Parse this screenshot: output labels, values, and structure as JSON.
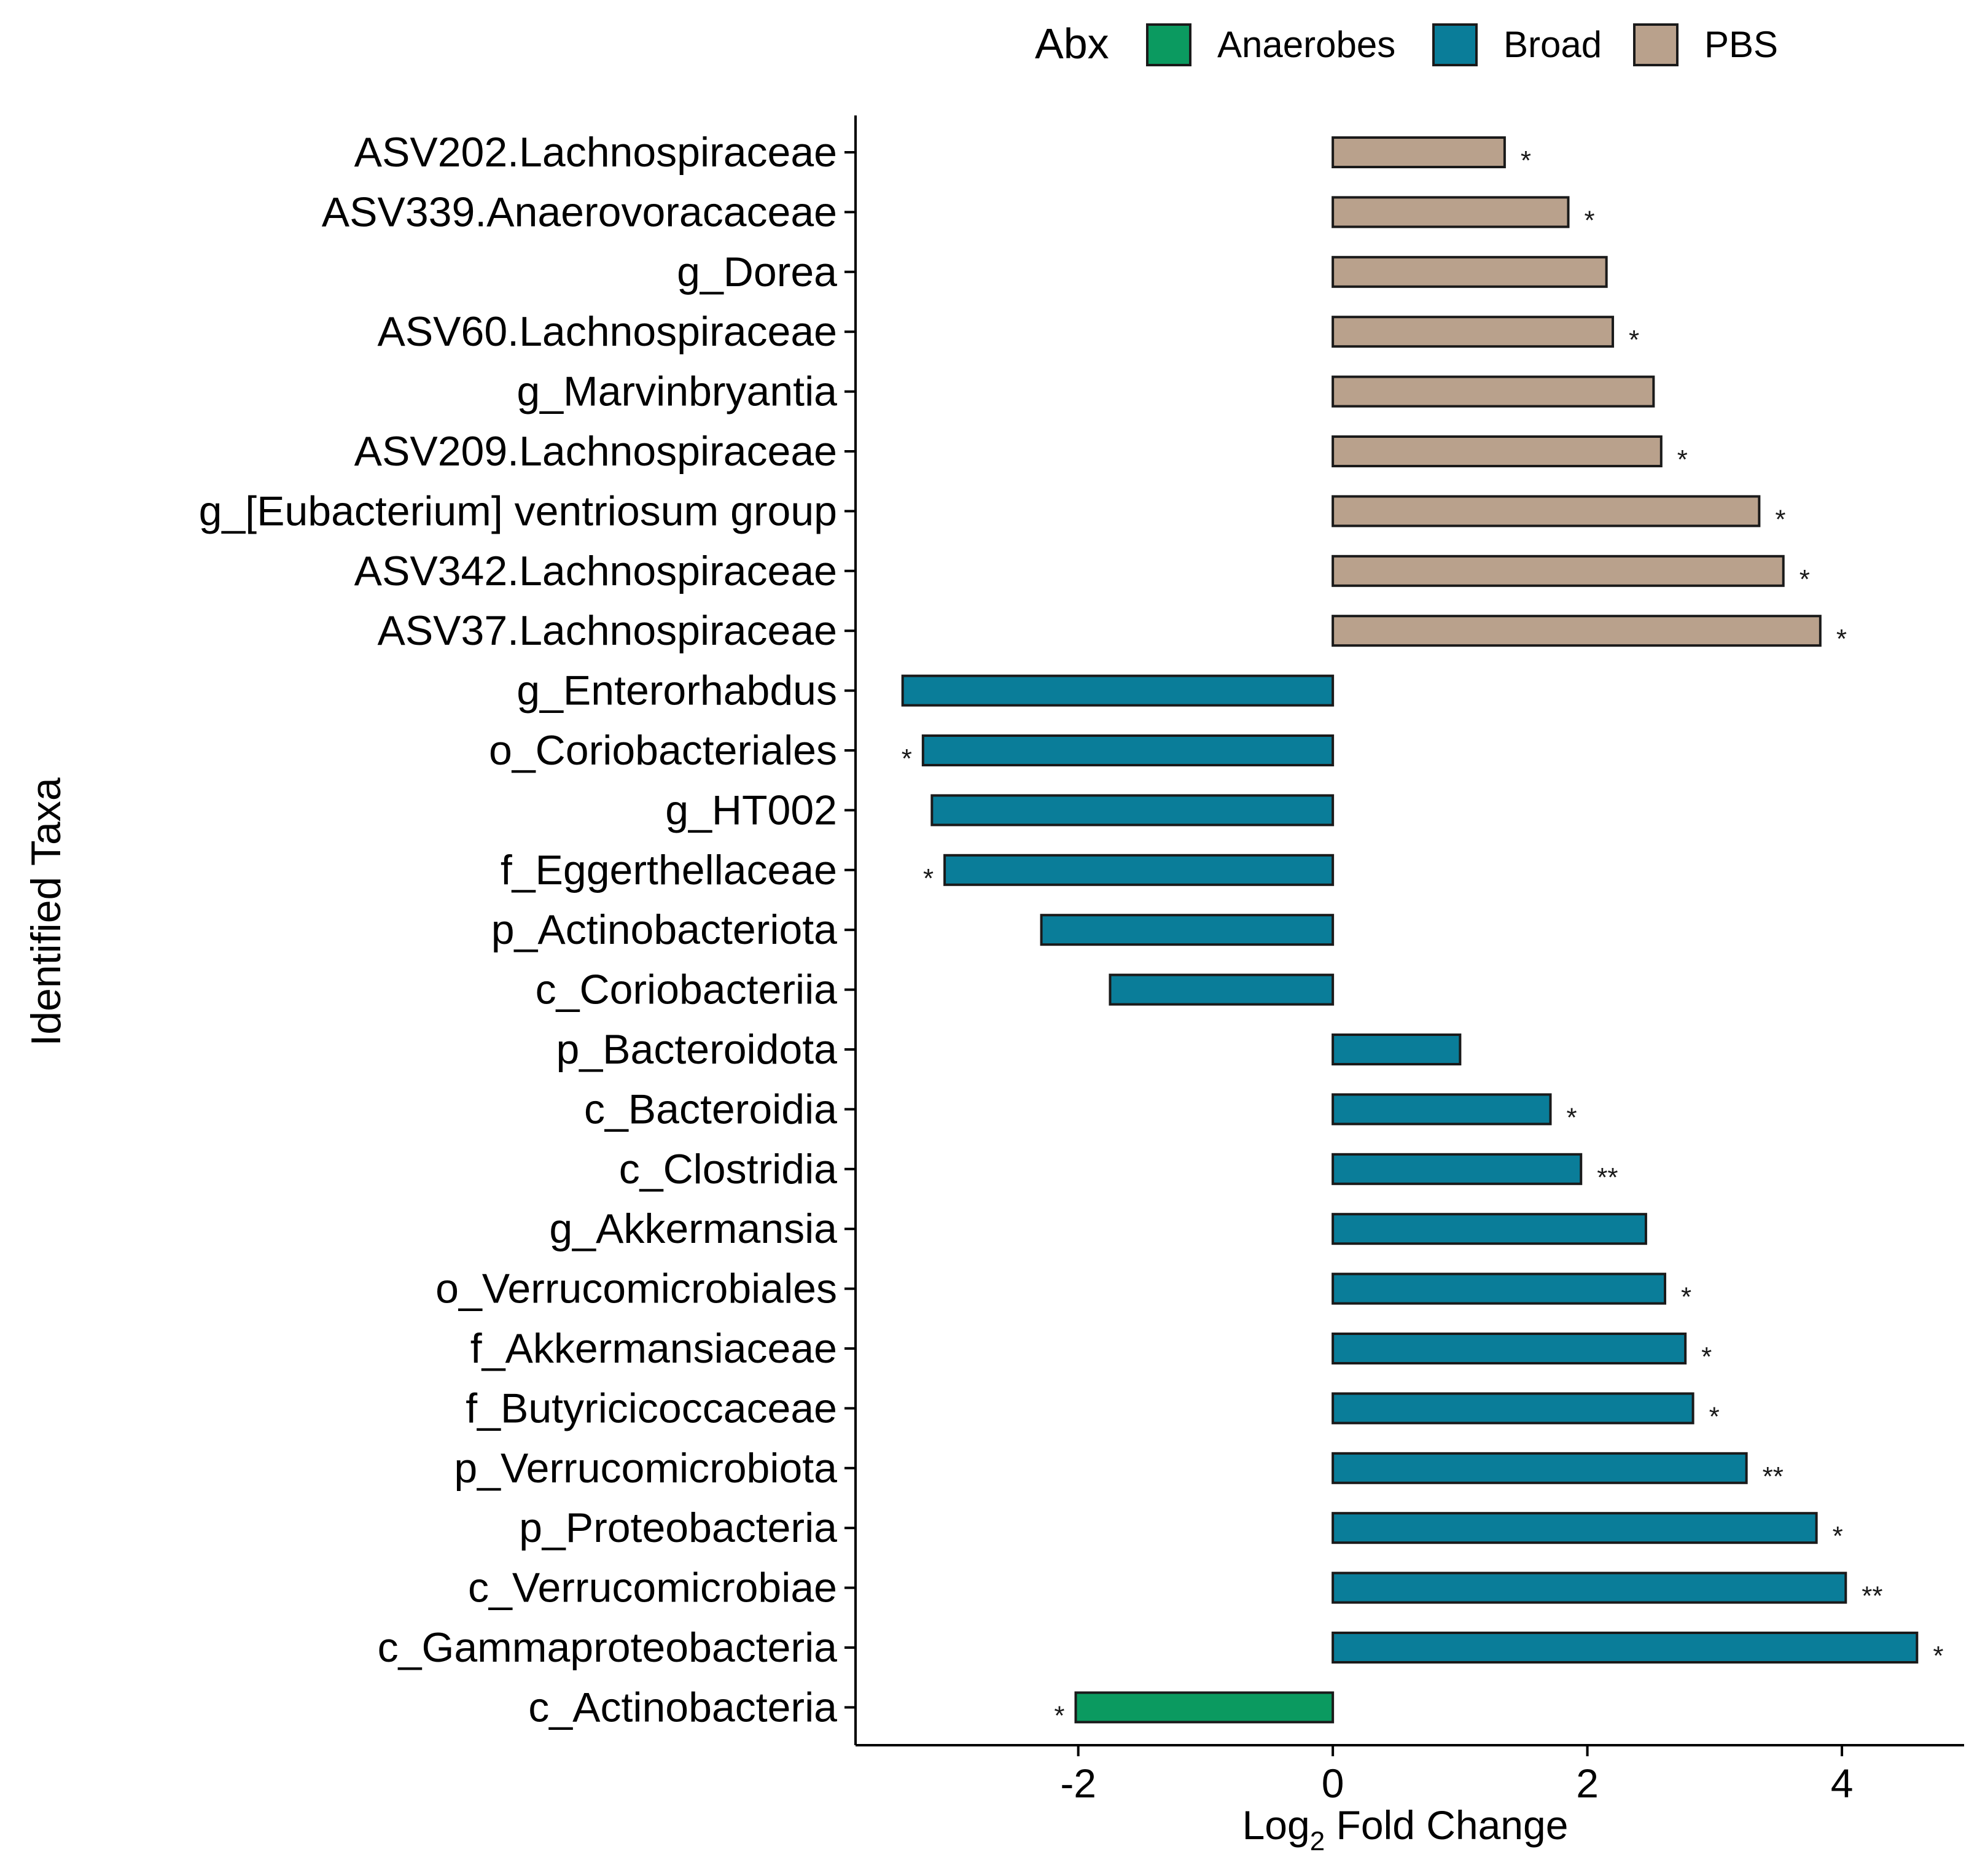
{
  "chart_data": {
    "type": "bar",
    "orientation": "horizontal",
    "xlabel": "Log2 Fold Change",
    "xlabel_main": "Log",
    "xlabel_sub": "2",
    "xlabel_rest": " Fold Change",
    "ylabel": "Identified Taxa",
    "xlim": [
      -3.75,
      4.96
    ],
    "xticks": [
      -2,
      0,
      2,
      4
    ],
    "xtick_labels": [
      "-2",
      "0",
      "2",
      "4"
    ],
    "grid": false,
    "legend": {
      "title": "Abx",
      "position": "top",
      "entries": [
        {
          "name": "Anaerobes",
          "color": "#0b9a60"
        },
        {
          "name": "Broad",
          "color": "#0a7d99"
        },
        {
          "name": "PBS",
          "color": "#b9a18c"
        }
      ]
    },
    "bars": [
      {
        "label": "ASV202.Lachnospiraceae",
        "value": 1.35,
        "group": "PBS",
        "sig": "*"
      },
      {
        "label": "ASV339.Anaerovoracaceae",
        "value": 1.85,
        "group": "PBS",
        "sig": "*"
      },
      {
        "label": "g_Dorea",
        "value": 2.15,
        "group": "PBS",
        "sig": ""
      },
      {
        "label": "ASV60.Lachnospiraceae",
        "value": 2.2,
        "group": "PBS",
        "sig": "*"
      },
      {
        "label": "g_Marvinbryantia",
        "value": 2.52,
        "group": "PBS",
        "sig": ""
      },
      {
        "label": "ASV209.Lachnospiraceae",
        "value": 2.58,
        "group": "PBS",
        "sig": "*"
      },
      {
        "label": "g_[Eubacterium] ventriosum group",
        "value": 3.35,
        "group": "PBS",
        "sig": "*"
      },
      {
        "label": "ASV342.Lachnospiraceae",
        "value": 3.54,
        "group": "PBS",
        "sig": "*"
      },
      {
        "label": "ASV37.Lachnospiraceae",
        "value": 3.83,
        "group": "PBS",
        "sig": "*"
      },
      {
        "label": "g_Enterorhabdus",
        "value": -3.38,
        "group": "Broad",
        "sig": ""
      },
      {
        "label": "o_Coriobacteriales",
        "value": -3.22,
        "group": "Broad",
        "sig": "*"
      },
      {
        "label": "g_HT002",
        "value": -3.15,
        "group": "Broad",
        "sig": ""
      },
      {
        "label": "f_Eggerthellaceae",
        "value": -3.05,
        "group": "Broad",
        "sig": "*"
      },
      {
        "label": "p_Actinobacteriota",
        "value": -2.29,
        "group": "Broad",
        "sig": ""
      },
      {
        "label": "c_Coriobacteriia",
        "value": -1.75,
        "group": "Broad",
        "sig": ""
      },
      {
        "label": "p_Bacteroidota",
        "value": 1.0,
        "group": "Broad",
        "sig": ""
      },
      {
        "label": "c_Bacteroidia",
        "value": 1.71,
        "group": "Broad",
        "sig": "*"
      },
      {
        "label": "c_Clostridia",
        "value": 1.95,
        "group": "Broad",
        "sig": "**"
      },
      {
        "label": "g_Akkermansia",
        "value": 2.46,
        "group": "Broad",
        "sig": ""
      },
      {
        "label": "o_Verrucomicrobiales",
        "value": 2.61,
        "group": "Broad",
        "sig": "*"
      },
      {
        "label": "f_Akkermansiaceae",
        "value": 2.77,
        "group": "Broad",
        "sig": "*"
      },
      {
        "label": "f_Butyricicoccaceae",
        "value": 2.83,
        "group": "Broad",
        "sig": "*"
      },
      {
        "label": "p_Verrucomicrobiota",
        "value": 3.25,
        "group": "Broad",
        "sig": "**"
      },
      {
        "label": "p_Proteobacteria",
        "value": 3.8,
        "group": "Broad",
        "sig": "*"
      },
      {
        "label": "c_Verrucomicrobiae",
        "value": 4.03,
        "group": "Broad",
        "sig": "**"
      },
      {
        "label": "c_Gammaproteobacteria",
        "value": 4.59,
        "group": "Broad",
        "sig": "*"
      },
      {
        "label": "c_Actinobacteria",
        "value": -2.02,
        "group": "Anaerobes",
        "sig": "*"
      }
    ]
  }
}
